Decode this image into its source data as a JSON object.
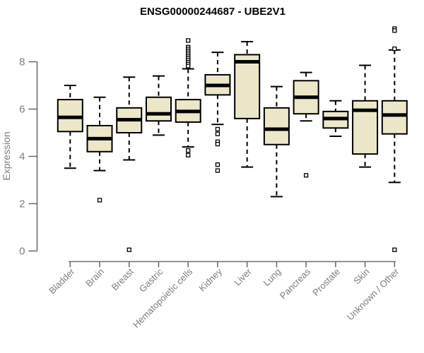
{
  "title": "ENSG00000244687 - UBE2V1",
  "colors": {
    "box_fill": "#ece7c8",
    "box_border": "#000000",
    "median": "#000000",
    "whisker": "#000000",
    "outlier_fill": "#ffffff",
    "outlier_border": "#000000",
    "axis_line": "#6f6f6f",
    "axis_text": "#7d7d7d",
    "title_text": "#000000",
    "background": "#ffffff"
  },
  "chart_data": {
    "type": "boxplot",
    "title": "ENSG00000244687 - UBE2V1",
    "xlabel": "",
    "ylabel": "Expression",
    "yticks": [
      0,
      2,
      4,
      6,
      8
    ],
    "ylim": [
      0,
      9.6
    ],
    "grid": false,
    "legend": null,
    "categories": [
      "Bladder",
      "Brain",
      "Breast",
      "Gastric",
      "Hematopoietic cells",
      "Kidney",
      "Liver",
      "Lung",
      "Pancreas",
      "Prostate",
      "Skin",
      "Unknown / Other"
    ],
    "boxes": [
      {
        "category": "Bladder",
        "whislo": 3.5,
        "q1": 5.05,
        "med": 5.65,
        "q3": 6.4,
        "whishi": 7.0,
        "outliers": []
      },
      {
        "category": "Brain",
        "whislo": 3.4,
        "q1": 4.2,
        "med": 4.75,
        "q3": 5.3,
        "whishi": 6.5,
        "outliers": [
          2.15
        ]
      },
      {
        "category": "Breast",
        "whislo": 3.85,
        "q1": 5.0,
        "med": 5.55,
        "q3": 6.05,
        "whishi": 7.35,
        "outliers": [
          0.05
        ]
      },
      {
        "category": "Gastric",
        "whislo": 4.9,
        "q1": 5.5,
        "med": 5.8,
        "q3": 6.5,
        "whishi": 7.4,
        "outliers": []
      },
      {
        "category": "Hematopoietic cells",
        "whislo": 4.4,
        "q1": 5.45,
        "med": 5.9,
        "q3": 6.4,
        "whishi": 7.7,
        "outliers": [
          8.9,
          8.62,
          8.54,
          8.46,
          8.38,
          8.3,
          8.22,
          8.14,
          8.06,
          7.98,
          7.9,
          7.82,
          4.25,
          4.05
        ]
      },
      {
        "category": "Kidney",
        "whislo": 5.35,
        "q1": 6.6,
        "med": 7.0,
        "q3": 7.45,
        "whishi": 8.4,
        "outliers": [
          5.15,
          4.95,
          4.62,
          4.52,
          3.65,
          3.4
        ]
      },
      {
        "category": "Liver",
        "whislo": 3.55,
        "q1": 5.6,
        "med": 8.0,
        "q3": 8.3,
        "whishi": 8.85,
        "outliers": []
      },
      {
        "category": "Lung",
        "whislo": 2.3,
        "q1": 4.5,
        "med": 5.15,
        "q3": 6.05,
        "whishi": 6.95,
        "outliers": []
      },
      {
        "category": "Pancreas",
        "whislo": 5.5,
        "q1": 5.8,
        "med": 6.5,
        "q3": 7.2,
        "whishi": 7.55,
        "outliers": [
          3.2
        ]
      },
      {
        "category": "Prostate",
        "whislo": 4.85,
        "q1": 5.2,
        "med": 5.6,
        "q3": 5.9,
        "whishi": 6.35,
        "outliers": []
      },
      {
        "category": "Skin",
        "whislo": 3.55,
        "q1": 4.1,
        "med": 5.95,
        "q3": 6.35,
        "whishi": 7.85,
        "outliers": []
      },
      {
        "category": "Unknown / Other",
        "whislo": 2.9,
        "q1": 4.95,
        "med": 5.75,
        "q3": 6.35,
        "whishi": 8.5,
        "outliers": [
          9.4,
          9.32,
          8.55,
          0.05
        ]
      }
    ]
  }
}
